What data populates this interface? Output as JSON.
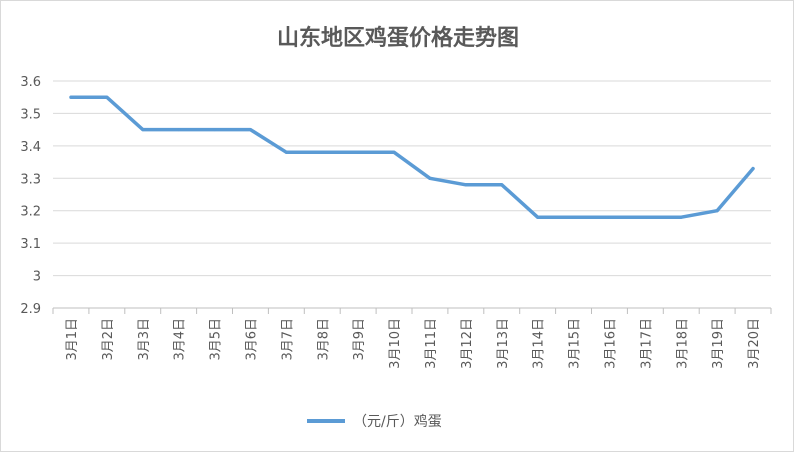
{
  "chart_data": {
    "type": "line",
    "title": "山东地区鸡蛋价格走势图",
    "categories": [
      "3月1日",
      "3月2日",
      "3月3日",
      "3月4日",
      "3月5日",
      "3月6日",
      "3月7日",
      "3月8日",
      "3月9日",
      "3月10日",
      "3月11日",
      "3月12日",
      "3月13日",
      "3月14日",
      "3月15日",
      "3月16日",
      "3月17日",
      "3月18日",
      "3月19日",
      "3月20日"
    ],
    "series": [
      {
        "name": "（元/斤）鸡蛋",
        "values": [
          3.55,
          3.55,
          3.45,
          3.45,
          3.45,
          3.45,
          3.38,
          3.38,
          3.38,
          3.38,
          3.3,
          3.28,
          3.28,
          3.18,
          3.18,
          3.18,
          3.18,
          3.18,
          3.2,
          3.33
        ],
        "color": "#5b9bd5"
      }
    ],
    "ylim": [
      2.9,
      3.6
    ],
    "yticks": [
      "2.9",
      "3",
      "3.1",
      "3.2",
      "3.3",
      "3.4",
      "3.5",
      "3.6"
    ],
    "xlabel": "",
    "ylabel": "",
    "grid": true,
    "legend": "bottom"
  }
}
